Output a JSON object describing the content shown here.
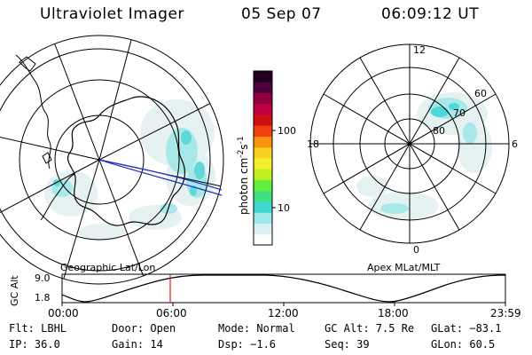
{
  "header": {
    "title": "Ultraviolet Imager",
    "date": "05 Sep 07",
    "time": "06:09:12 UT"
  },
  "colorbar": {
    "unit_label": "photon cm",
    "unit_exp1": "-2",
    "unit_s": "s",
    "unit_exp2": "-1",
    "tick_100": "100",
    "tick_10": "10",
    "colors": [
      "#ffffff",
      "#d8f2f2",
      "#9eeaea",
      "#40d8d0",
      "#40e080",
      "#60f040",
      "#c0f020",
      "#f0f030",
      "#f8d020",
      "#f89010",
      "#f04010",
      "#d01010",
      "#c00040",
      "#900040",
      "#500040",
      "#200020"
    ]
  },
  "geo_panel": {
    "caption": "Geographic Lat/Lon"
  },
  "apex_panel": {
    "caption": "Apex  MLat/MLT",
    "mlt_12": "12",
    "mlt_18": "18",
    "mlt_6": "6",
    "mlt_0": "0",
    "lat_60": "60",
    "lat_70": "70",
    "lat_80": "80"
  },
  "altitude_plot": {
    "axis_label": "GC Alt",
    "y_max": "9.0",
    "y_min": "1.8",
    "x_ticks": [
      "00:00",
      "06:00",
      "12:00",
      "18:00",
      "23:59"
    ],
    "marker_color": "#e02020"
  },
  "status": {
    "flt": "Flt: LBHL",
    "door": "Door: Open",
    "mode": "Mode: Normal",
    "gc_alt": "GC Alt: 7.5 Re",
    "glat": "GLat: −83.1",
    "ip": "IP: 36.0",
    "gain": "Gain: 14",
    "dsp": "Dsp:   −1.6",
    "seq": "Seq: 39",
    "glon": "GLon:  60.5"
  }
}
